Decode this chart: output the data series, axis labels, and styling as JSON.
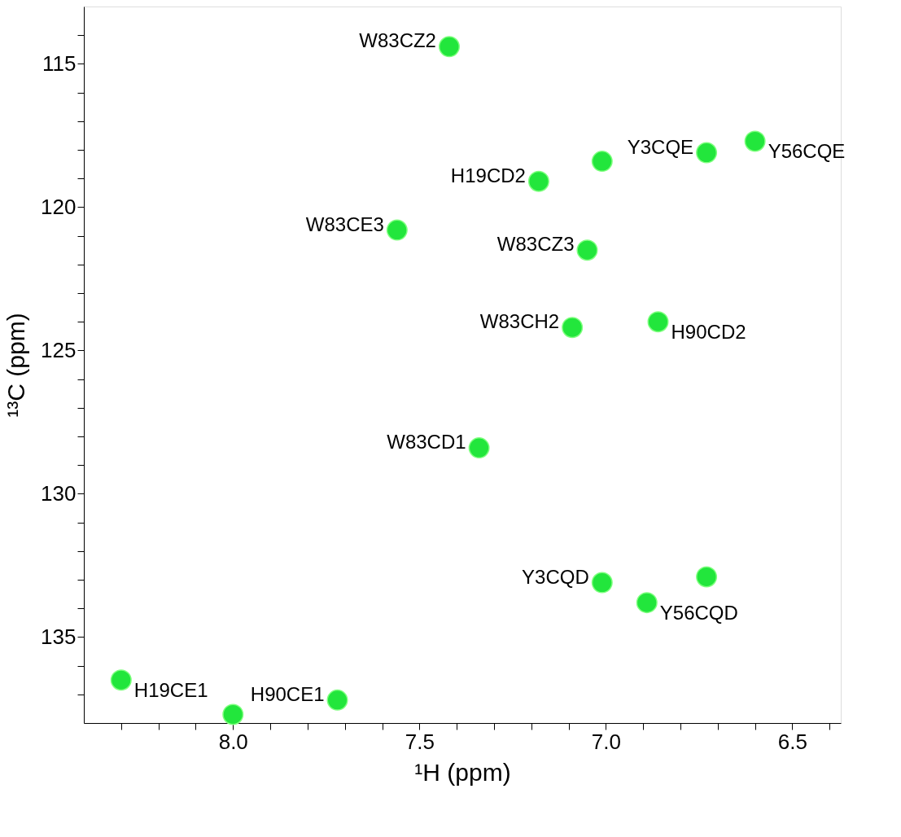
{
  "chart_data": {
    "type": "scatter",
    "xlabel": "¹H  (ppm)",
    "ylabel": "¹³C  (ppm)",
    "xlim": [
      8.4,
      6.37
    ],
    "ylim": [
      138,
      113
    ],
    "xticks": [
      {
        "value": 8.3,
        "label": null
      },
      {
        "value": 8.2,
        "label": null
      },
      {
        "value": 8.1,
        "label": null
      },
      {
        "value": 8.0,
        "label": "8.0"
      },
      {
        "value": 7.9,
        "label": null
      },
      {
        "value": 7.8,
        "label": null
      },
      {
        "value": 7.7,
        "label": null
      },
      {
        "value": 7.6,
        "label": null
      },
      {
        "value": 7.5,
        "label": "7.5"
      },
      {
        "value": 7.4,
        "label": null
      },
      {
        "value": 7.3,
        "label": null
      },
      {
        "value": 7.2,
        "label": null
      },
      {
        "value": 7.1,
        "label": null
      },
      {
        "value": 7.0,
        "label": "7.0"
      },
      {
        "value": 6.9,
        "label": null
      },
      {
        "value": 6.8,
        "label": null
      },
      {
        "value": 6.7,
        "label": null
      },
      {
        "value": 6.6,
        "label": null
      },
      {
        "value": 6.5,
        "label": "6.5"
      },
      {
        "value": 6.4,
        "label": null
      }
    ],
    "yticks": [
      {
        "value": 114,
        "label": null
      },
      115,
      {
        "value": 116,
        "label": null
      },
      {
        "value": 117,
        "label": null
      },
      {
        "value": 118,
        "label": null
      },
      {
        "value": 119,
        "label": null
      },
      120,
      {
        "value": 121,
        "label": null
      },
      {
        "value": 122,
        "label": null
      },
      {
        "value": 123,
        "label": null
      },
      {
        "value": 124,
        "label": null
      },
      125,
      {
        "value": 126,
        "label": null
      },
      {
        "value": 127,
        "label": null
      },
      {
        "value": 128,
        "label": null
      },
      {
        "value": 129,
        "label": null
      },
      130,
      {
        "value": 131,
        "label": null
      },
      {
        "value": 132,
        "label": null
      },
      {
        "value": 133,
        "label": null
      },
      {
        "value": 134,
        "label": null
      },
      135,
      {
        "value": 136,
        "label": null
      },
      {
        "value": 137,
        "label": null
      }
    ],
    "grid": false,
    "marker": "circle",
    "series": [
      {
        "color": "#22e63c",
        "x": [
          7.42,
          6.73,
          6.6,
          7.18,
          7.01,
          7.56,
          7.05,
          7.09,
          6.86,
          7.34,
          7.01,
          6.89,
          6.73,
          8.3,
          7.72,
          8.0
        ],
        "values": [
          114.4,
          118.1,
          117.7,
          119.1,
          118.4,
          120.8,
          121.5,
          124.2,
          124.0,
          128.4,
          133.1,
          133.8,
          132.9,
          136.5,
          137.2,
          137.7
        ]
      }
    ],
    "annotations": [
      {
        "text": "W83CZ2",
        "x": 7.42,
        "y": 114.4
      },
      {
        "text": "Y3CQE",
        "x": 6.73,
        "y": 118.1
      },
      {
        "text": "Y56CQE",
        "x": 6.6,
        "y": 117.7
      },
      {
        "text": "H19CD2",
        "x": 7.18,
        "y": 119.1
      },
      {
        "text": "W83CE3",
        "x": 7.56,
        "y": 120.8
      },
      {
        "text": "W83CZ3",
        "x": 7.05,
        "y": 121.5
      },
      {
        "text": "W83CH2",
        "x": 7.09,
        "y": 124.2
      },
      {
        "text": "H90CD2",
        "x": 6.86,
        "y": 124.0
      },
      {
        "text": "W83CD1",
        "x": 7.34,
        "y": 128.4
      },
      {
        "text": "Y3CQD",
        "x": 7.01,
        "y": 133.1
      },
      {
        "text": "Y56CQD",
        "x": 6.89,
        "y": 133.8
      },
      {
        "text": "H19CE1",
        "x": 8.3,
        "y": 136.5
      },
      {
        "text": "H90CE1",
        "x": 7.72,
        "y": 137.2
      }
    ]
  }
}
